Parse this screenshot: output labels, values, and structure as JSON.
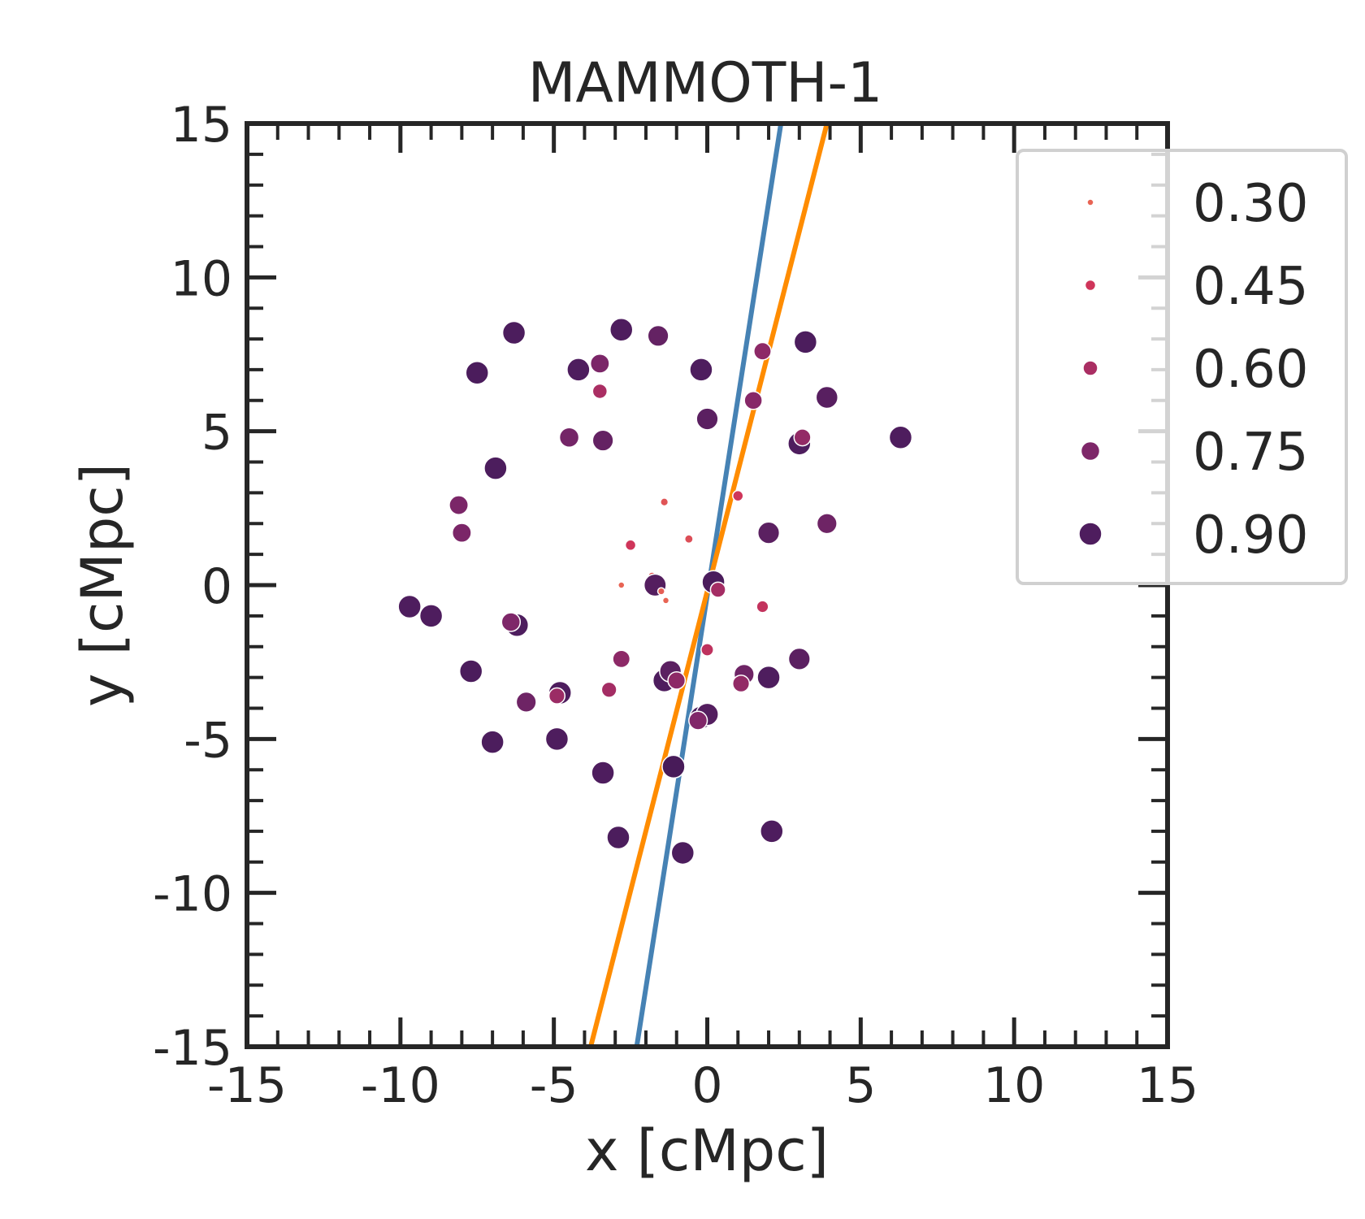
{
  "chart_data": {
    "type": "scatter",
    "title": "MAMMOTH-1",
    "xlabel": "x [cMpc]",
    "ylabel": "y [cMpc]",
    "xlim": [
      -15,
      15
    ],
    "ylim": [
      -15,
      15
    ],
    "x_ticks": [
      -15,
      -10,
      -5,
      0,
      5,
      10,
      15
    ],
    "y_ticks": [
      -15,
      -10,
      -5,
      0,
      5,
      10,
      15
    ],
    "x_tick_labels": [
      "-15",
      "-10",
      "-5",
      "0",
      "5",
      "10",
      "15"
    ],
    "y_tick_labels": [
      "-15",
      "-10",
      "-5",
      "0",
      "5",
      "10",
      "15"
    ],
    "grid": false,
    "legend": {
      "position": "upper right, outside",
      "entries": [
        {
          "label": "0.30",
          "value": 0.3
        },
        {
          "label": "0.45",
          "value": 0.45
        },
        {
          "label": "0.60",
          "value": 0.6
        },
        {
          "label": "0.75",
          "value": 0.75
        },
        {
          "label": "0.90",
          "value": 0.9
        }
      ]
    },
    "lines": [
      {
        "name": "blue-line",
        "color": "#4682B4",
        "x": [
          -2.3,
          2.4
        ],
        "y": [
          -15,
          15
        ]
      },
      {
        "name": "orange-line",
        "color": "#FF8C00",
        "x": [
          -3.8,
          3.9
        ],
        "y": [
          -15,
          15
        ]
      }
    ],
    "points": [
      {
        "x": -6.3,
        "y": 8.2,
        "v": 0.91
      },
      {
        "x": -7.5,
        "y": 6.9,
        "v": 0.92
      },
      {
        "x": -2.8,
        "y": 8.3,
        "v": 0.9
      },
      {
        "x": -1.6,
        "y": 8.1,
        "v": 0.83
      },
      {
        "x": -4.2,
        "y": 7.0,
        "v": 0.9
      },
      {
        "x": -3.5,
        "y": 7.2,
        "v": 0.76
      },
      {
        "x": -3.5,
        "y": 6.3,
        "v": 0.6
      },
      {
        "x": -0.2,
        "y": 7.0,
        "v": 0.9
      },
      {
        "x": 1.8,
        "y": 7.6,
        "v": 0.7
      },
      {
        "x": 3.2,
        "y": 7.9,
        "v": 0.91
      },
      {
        "x": 1.5,
        "y": 6.0,
        "v": 0.72
      },
      {
        "x": 3.9,
        "y": 6.1,
        "v": 0.87
      },
      {
        "x": -4.5,
        "y": 4.8,
        "v": 0.78
      },
      {
        "x": -3.4,
        "y": 4.7,
        "v": 0.83
      },
      {
        "x": 0.0,
        "y": 5.4,
        "v": 0.86
      },
      {
        "x": 3.0,
        "y": 4.6,
        "v": 0.9
      },
      {
        "x": 3.1,
        "y": 4.8,
        "v": 0.68
      },
      {
        "x": 6.3,
        "y": 4.8,
        "v": 0.9
      },
      {
        "x": -6.9,
        "y": 3.8,
        "v": 0.91
      },
      {
        "x": -8.1,
        "y": 2.6,
        "v": 0.76
      },
      {
        "x": -8.0,
        "y": 1.7,
        "v": 0.76
      },
      {
        "x": 1.0,
        "y": 2.9,
        "v": 0.45
      },
      {
        "x": -1.4,
        "y": 2.7,
        "v": 0.35
      },
      {
        "x": -0.6,
        "y": 1.5,
        "v": 0.37
      },
      {
        "x": -2.5,
        "y": 1.3,
        "v": 0.45
      },
      {
        "x": 2.0,
        "y": 1.7,
        "v": 0.86
      },
      {
        "x": 3.9,
        "y": 2.0,
        "v": 0.8
      },
      {
        "x": -2.8,
        "y": 0.0,
        "v": 0.3
      },
      {
        "x": -1.8,
        "y": 0.3,
        "v": 0.34
      },
      {
        "x": -1.7,
        "y": 0.0,
        "v": 0.88
      },
      {
        "x": -1.5,
        "y": -0.2,
        "v": 0.32
      },
      {
        "x": -1.35,
        "y": -0.5,
        "v": 0.3
      },
      {
        "x": 0.2,
        "y": 0.1,
        "v": 0.92
      },
      {
        "x": 0.35,
        "y": -0.15,
        "v": 0.62
      },
      {
        "x": 1.8,
        "y": -0.7,
        "v": 0.5
      },
      {
        "x": -9.7,
        "y": -0.7,
        "v": 0.9
      },
      {
        "x": -9.0,
        "y": -1.0,
        "v": 0.9
      },
      {
        "x": -6.2,
        "y": -1.3,
        "v": 0.9
      },
      {
        "x": -6.4,
        "y": -1.2,
        "v": 0.75
      },
      {
        "x": 0.0,
        "y": -2.1,
        "v": 0.52
      },
      {
        "x": -2.8,
        "y": -2.4,
        "v": 0.7
      },
      {
        "x": 3.0,
        "y": -2.4,
        "v": 0.86
      },
      {
        "x": -7.7,
        "y": -2.8,
        "v": 0.92
      },
      {
        "x": -1.4,
        "y": -3.1,
        "v": 0.9
      },
      {
        "x": -1.2,
        "y": -2.8,
        "v": 0.86
      },
      {
        "x": -1.0,
        "y": -3.1,
        "v": 0.7
      },
      {
        "x": 1.2,
        "y": -2.9,
        "v": 0.8
      },
      {
        "x": 1.1,
        "y": -3.2,
        "v": 0.68
      },
      {
        "x": 2.0,
        "y": -3.0,
        "v": 0.9
      },
      {
        "x": -3.2,
        "y": -3.4,
        "v": 0.62
      },
      {
        "x": -4.8,
        "y": -3.5,
        "v": 0.9
      },
      {
        "x": -4.9,
        "y": -3.6,
        "v": 0.65
      },
      {
        "x": -5.9,
        "y": -3.8,
        "v": 0.8
      },
      {
        "x": -0.2,
        "y": -4.3,
        "v": 0.92
      },
      {
        "x": 0.0,
        "y": -4.2,
        "v": 0.88
      },
      {
        "x": -0.3,
        "y": -4.4,
        "v": 0.74
      },
      {
        "x": -7.0,
        "y": -5.1,
        "v": 0.91
      },
      {
        "x": -4.9,
        "y": -5.0,
        "v": 0.9
      },
      {
        "x": -3.4,
        "y": -6.1,
        "v": 0.9
      },
      {
        "x": -1.1,
        "y": -5.9,
        "v": 0.94
      },
      {
        "x": -2.9,
        "y": -8.2,
        "v": 0.91
      },
      {
        "x": -0.8,
        "y": -8.7,
        "v": 0.91
      },
      {
        "x": 2.1,
        "y": -8.0,
        "v": 0.9
      }
    ]
  }
}
